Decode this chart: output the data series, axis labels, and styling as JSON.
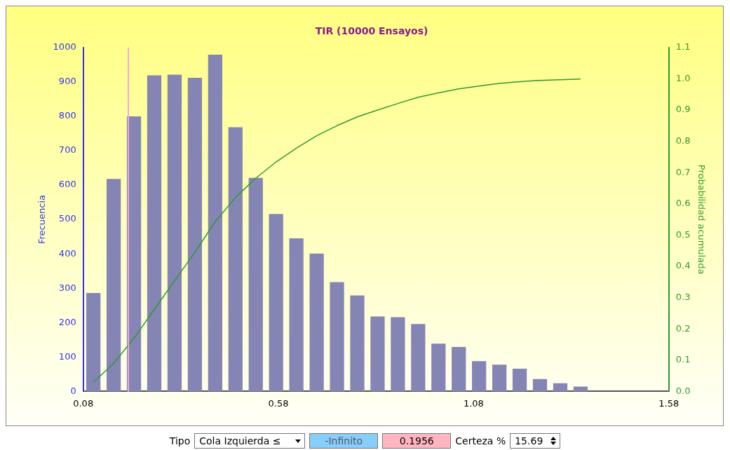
{
  "chart_data": {
    "type": "histogram",
    "title": "TIR (10000 Ensayos)",
    "ylabel": "Frecuencia",
    "y2label": "Probabilidad acumulada",
    "bins": [
      0.08,
      0.132,
      0.184,
      0.236,
      0.288,
      0.34,
      0.392,
      0.444,
      0.496,
      0.548,
      0.6,
      0.652,
      0.704,
      0.756,
      0.808,
      0.86,
      0.912,
      0.964,
      1.016,
      1.068,
      1.12,
      1.172,
      1.224,
      1.276,
      1.328,
      1.38
    ],
    "series": [
      {
        "type": "histogram",
        "color": "#8585b5",
        "values": [
          286,
          618,
          800,
          919,
          921,
          912,
          979,
          768,
          621,
          516,
          445,
          401,
          318,
          279,
          218,
          216,
          196,
          139,
          129,
          88,
          78,
          66,
          36,
          24,
          14
        ]
      },
      {
        "type": "line",
        "axis": "y2",
        "color": "#2e9a2e",
        "x": [
          0.106,
          0.158,
          0.21,
          0.262,
          0.314,
          0.366,
          0.418,
          0.47,
          0.522,
          0.574,
          0.626,
          0.678,
          0.73,
          0.782,
          0.834,
          0.886,
          0.938,
          0.99,
          1.042,
          1.094,
          1.146,
          1.198,
          1.25,
          1.302,
          1.354
        ],
        "values": [
          0.029,
          0.09,
          0.17,
          0.262,
          0.354,
          0.445,
          0.543,
          0.62,
          0.682,
          0.734,
          0.778,
          0.818,
          0.85,
          0.878,
          0.9,
          0.921,
          0.941,
          0.955,
          0.968,
          0.977,
          0.985,
          0.991,
          0.995,
          0.997,
          0.999
        ]
      }
    ],
    "xlim": [
      0.08,
      1.58
    ],
    "xticks": [
      0.08,
      0.58,
      1.08,
      1.58
    ],
    "ylim": [
      0,
      1000
    ],
    "yticks": [
      0,
      100,
      200,
      300,
      400,
      500,
      600,
      700,
      800,
      900,
      1000
    ],
    "y2lim": [
      0,
      1.1
    ],
    "y2ticks": [
      {
        "value": 0,
        "label": "0.0"
      },
      0.1,
      0.2,
      0.3,
      0.4,
      0.5,
      0.6,
      0.7,
      0.8,
      0.9,
      {
        "value": 1,
        "label": "1.0"
      },
      1.1
    ],
    "ref_lines": [
      {
        "axis": "x",
        "value": 0.1956,
        "color": "#f0a8d8"
      }
    ],
    "grid": false,
    "legend": false,
    "marker": "none",
    "line_style": "solid",
    "annotations": [
      "Tipo",
      "Cola Izquierda ≤",
      "-Infinito",
      "0.1956",
      "Certeza %",
      "15.69"
    ]
  }
}
